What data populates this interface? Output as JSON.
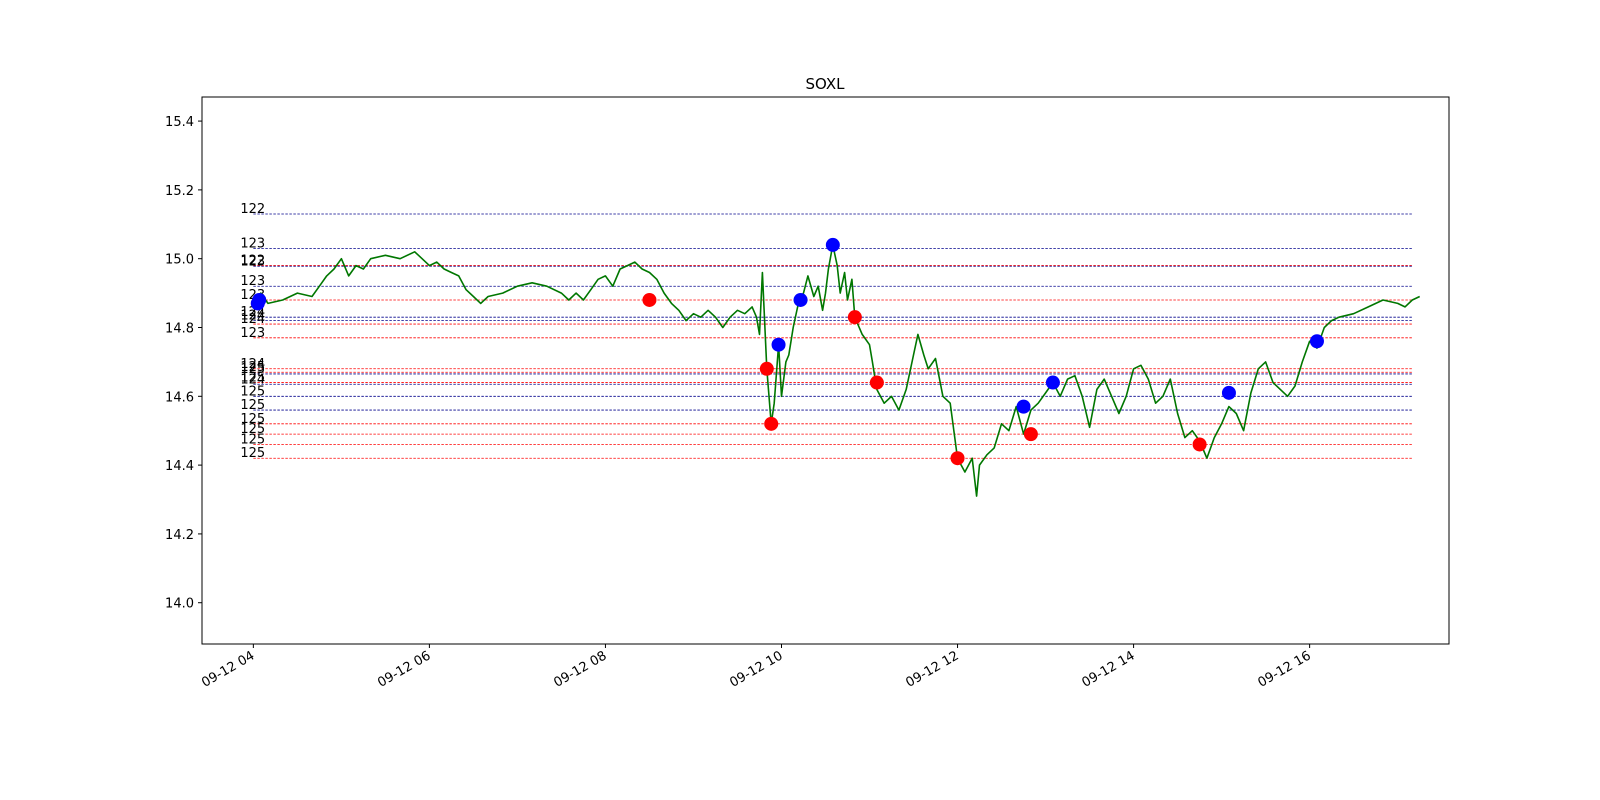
{
  "chart_data": {
    "type": "line",
    "title": "SOXL",
    "xlabel": "",
    "ylabel": "",
    "x_ticks": [
      "09-12 04",
      "09-12 06",
      "09-12 08",
      "09-12 10",
      "09-12 12",
      "09-12 14",
      "09-12 16"
    ],
    "y_ticks": [
      "14.0",
      "14.2",
      "14.4",
      "14.6",
      "14.8",
      "15.0",
      "15.2",
      "15.4"
    ],
    "xlim": [
      "09-12 03:25",
      "09-12 17:35"
    ],
    "ylim": [
      13.88,
      15.47
    ],
    "grid": false,
    "legend": "none",
    "colors": {
      "price": "#007700",
      "buy": "#0000ff",
      "sell": "#ff0000",
      "level_blue": "#00008b",
      "level_red": "#ff0000"
    },
    "price_series": [
      [
        "09-12 04:00",
        14.86
      ],
      [
        "09-12 04:05",
        14.9
      ],
      [
        "09-12 04:10",
        14.87
      ],
      [
        "09-12 04:20",
        14.88
      ],
      [
        "09-12 04:30",
        14.9
      ],
      [
        "09-12 04:40",
        14.89
      ],
      [
        "09-12 04:45",
        14.92
      ],
      [
        "09-12 04:50",
        14.95
      ],
      [
        "09-12 04:55",
        14.97
      ],
      [
        "09-12 05:00",
        15.0
      ],
      [
        "09-12 05:05",
        14.95
      ],
      [
        "09-12 05:10",
        14.98
      ],
      [
        "09-12 05:15",
        14.97
      ],
      [
        "09-12 05:20",
        15.0
      ],
      [
        "09-12 05:30",
        15.01
      ],
      [
        "09-12 05:40",
        15.0
      ],
      [
        "09-12 05:50",
        15.02
      ],
      [
        "09-12 05:55",
        15.0
      ],
      [
        "09-12 06:00",
        14.98
      ],
      [
        "09-12 06:05",
        14.99
      ],
      [
        "09-12 06:10",
        14.97
      ],
      [
        "09-12 06:15",
        14.96
      ],
      [
        "09-12 06:20",
        14.95
      ],
      [
        "09-12 06:25",
        14.91
      ],
      [
        "09-12 06:30",
        14.89
      ],
      [
        "09-12 06:35",
        14.87
      ],
      [
        "09-12 06:40",
        14.89
      ],
      [
        "09-12 06:50",
        14.9
      ],
      [
        "09-12 07:00",
        14.92
      ],
      [
        "09-12 07:10",
        14.93
      ],
      [
        "09-12 07:20",
        14.92
      ],
      [
        "09-12 07:30",
        14.9
      ],
      [
        "09-12 07:35",
        14.88
      ],
      [
        "09-12 07:40",
        14.9
      ],
      [
        "09-12 07:45",
        14.88
      ],
      [
        "09-12 07:50",
        14.91
      ],
      [
        "09-12 07:55",
        14.94
      ],
      [
        "09-12 08:00",
        14.95
      ],
      [
        "09-12 08:05",
        14.92
      ],
      [
        "09-12 08:10",
        14.97
      ],
      [
        "09-12 08:15",
        14.98
      ],
      [
        "09-12 08:20",
        14.99
      ],
      [
        "09-12 08:25",
        14.97
      ],
      [
        "09-12 08:30",
        14.96
      ],
      [
        "09-12 08:35",
        14.94
      ],
      [
        "09-12 08:40",
        14.9
      ],
      [
        "09-12 08:45",
        14.87
      ],
      [
        "09-12 08:50",
        14.85
      ],
      [
        "09-12 08:55",
        14.82
      ],
      [
        "09-12 09:00",
        14.84
      ],
      [
        "09-12 09:05",
        14.83
      ],
      [
        "09-12 09:10",
        14.85
      ],
      [
        "09-12 09:15",
        14.83
      ],
      [
        "09-12 09:20",
        14.8
      ],
      [
        "09-12 09:25",
        14.83
      ],
      [
        "09-12 09:30",
        14.85
      ],
      [
        "09-12 09:35",
        14.84
      ],
      [
        "09-12 09:40",
        14.86
      ],
      [
        "09-12 09:43",
        14.83
      ],
      [
        "09-12 09:45",
        14.78
      ],
      [
        "09-12 09:47",
        14.96
      ],
      [
        "09-12 09:50",
        14.68
      ],
      [
        "09-12 09:53",
        14.52
      ],
      [
        "09-12 09:55",
        14.58
      ],
      [
        "09-12 09:58",
        14.75
      ],
      [
        "09-12 10:00",
        14.6
      ],
      [
        "09-12 10:03",
        14.7
      ],
      [
        "09-12 10:05",
        14.72
      ],
      [
        "09-12 10:08",
        14.8
      ],
      [
        "09-12 10:12",
        14.88
      ],
      [
        "09-12 10:15",
        14.9
      ],
      [
        "09-12 10:18",
        14.95
      ],
      [
        "09-12 10:22",
        14.89
      ],
      [
        "09-12 10:25",
        14.92
      ],
      [
        "09-12 10:28",
        14.85
      ],
      [
        "09-12 10:30",
        14.9
      ],
      [
        "09-12 10:32",
        14.97
      ],
      [
        "09-12 10:35",
        15.04
      ],
      [
        "09-12 10:38",
        14.98
      ],
      [
        "09-12 10:40",
        14.9
      ],
      [
        "09-12 10:43",
        14.96
      ],
      [
        "09-12 10:45",
        14.88
      ],
      [
        "09-12 10:48",
        14.94
      ],
      [
        "09-12 10:50",
        14.83
      ],
      [
        "09-12 10:55",
        14.78
      ],
      [
        "09-12 11:00",
        14.75
      ],
      [
        "09-12 11:02",
        14.7
      ],
      [
        "09-12 11:05",
        14.62
      ],
      [
        "09-12 11:10",
        14.58
      ],
      [
        "09-12 11:15",
        14.6
      ],
      [
        "09-12 11:20",
        14.56
      ],
      [
        "09-12 11:25",
        14.62
      ],
      [
        "09-12 11:30",
        14.72
      ],
      [
        "09-12 11:33",
        14.78
      ],
      [
        "09-12 11:37",
        14.72
      ],
      [
        "09-12 11:40",
        14.68
      ],
      [
        "09-12 11:45",
        14.71
      ],
      [
        "09-12 11:50",
        14.6
      ],
      [
        "09-12 11:55",
        14.58
      ],
      [
        "09-12 12:00",
        14.42
      ],
      [
        "09-12 12:05",
        14.38
      ],
      [
        "09-12 12:10",
        14.42
      ],
      [
        "09-12 12:13",
        14.31
      ],
      [
        "09-12 12:15",
        14.4
      ],
      [
        "09-12 12:20",
        14.43
      ],
      [
        "09-12 12:25",
        14.45
      ],
      [
        "09-12 12:30",
        14.52
      ],
      [
        "09-12 12:35",
        14.5
      ],
      [
        "09-12 12:40",
        14.57
      ],
      [
        "09-12 12:45",
        14.49
      ],
      [
        "09-12 12:50",
        14.56
      ],
      [
        "09-12 12:55",
        14.58
      ],
      [
        "09-12 13:00",
        14.61
      ],
      [
        "09-12 13:05",
        14.64
      ],
      [
        "09-12 13:10",
        14.6
      ],
      [
        "09-12 13:15",
        14.65
      ],
      [
        "09-12 13:20",
        14.66
      ],
      [
        "09-12 13:25",
        14.6
      ],
      [
        "09-12 13:30",
        14.51
      ],
      [
        "09-12 13:35",
        14.62
      ],
      [
        "09-12 13:40",
        14.65
      ],
      [
        "09-12 13:45",
        14.6
      ],
      [
        "09-12 13:50",
        14.55
      ],
      [
        "09-12 13:55",
        14.6
      ],
      [
        "09-12 14:00",
        14.68
      ],
      [
        "09-12 14:05",
        14.69
      ],
      [
        "09-12 14:10",
        14.65
      ],
      [
        "09-12 14:15",
        14.58
      ],
      [
        "09-12 14:20",
        14.6
      ],
      [
        "09-12 14:25",
        14.65
      ],
      [
        "09-12 14:30",
        14.55
      ],
      [
        "09-12 14:35",
        14.48
      ],
      [
        "09-12 14:40",
        14.5
      ],
      [
        "09-12 14:45",
        14.47
      ],
      [
        "09-12 14:50",
        14.42
      ],
      [
        "09-12 14:55",
        14.48
      ],
      [
        "09-12 15:00",
        14.52
      ],
      [
        "09-12 15:05",
        14.57
      ],
      [
        "09-12 15:10",
        14.55
      ],
      [
        "09-12 15:15",
        14.5
      ],
      [
        "09-12 15:20",
        14.61
      ],
      [
        "09-12 15:25",
        14.68
      ],
      [
        "09-12 15:30",
        14.7
      ],
      [
        "09-12 15:35",
        14.64
      ],
      [
        "09-12 15:40",
        14.62
      ],
      [
        "09-12 15:45",
        14.6
      ],
      [
        "09-12 15:50",
        14.63
      ],
      [
        "09-12 15:55",
        14.7
      ],
      [
        "09-12 16:00",
        14.76
      ],
      [
        "09-12 16:05",
        14.74
      ],
      [
        "09-12 16:10",
        14.8
      ],
      [
        "09-12 16:15",
        14.82
      ],
      [
        "09-12 16:20",
        14.83
      ],
      [
        "09-12 16:30",
        14.84
      ],
      [
        "09-12 16:40",
        14.86
      ],
      [
        "09-12 16:50",
        14.88
      ],
      [
        "09-12 17:00",
        14.87
      ],
      [
        "09-12 17:05",
        14.86
      ],
      [
        "09-12 17:10",
        14.88
      ],
      [
        "09-12 17:15",
        14.89
      ]
    ],
    "buy_points": [
      [
        "09-12 04:03",
        14.87
      ],
      [
        "09-12 04:04",
        14.88
      ],
      [
        "09-12 09:58",
        14.75
      ],
      [
        "09-12 10:13",
        14.88
      ],
      [
        "09-12 10:35",
        15.04
      ],
      [
        "09-12 12:45",
        14.57
      ],
      [
        "09-12 13:05",
        14.64
      ],
      [
        "09-12 15:05",
        14.61
      ],
      [
        "09-12 16:05",
        14.76
      ]
    ],
    "sell_points": [
      [
        "09-12 08:30",
        14.88
      ],
      [
        "09-12 09:50",
        14.68
      ],
      [
        "09-12 09:53",
        14.52
      ],
      [
        "09-12 10:50",
        14.83
      ],
      [
        "09-12 11:05",
        14.64
      ],
      [
        "09-12 12:00",
        14.42
      ],
      [
        "09-12 12:50",
        14.49
      ],
      [
        "09-12 14:45",
        14.46
      ]
    ],
    "levels": [
      {
        "label": "122",
        "value": 15.13,
        "color": "blue"
      },
      {
        "label": "123",
        "value": 15.03,
        "color": "blue"
      },
      {
        "label": "122",
        "value": 14.98,
        "color": "red"
      },
      {
        "label": "123",
        "value": 14.978,
        "color": "blue"
      },
      {
        "label": "123",
        "value": 14.92,
        "color": "blue"
      },
      {
        "label": "123",
        "value": 14.88,
        "color": "red"
      },
      {
        "label": "124",
        "value": 14.83,
        "color": "blue"
      },
      {
        "label": "124",
        "value": 14.82,
        "color": "blue"
      },
      {
        "label": "124",
        "value": 14.81,
        "color": "red"
      },
      {
        "label": "123",
        "value": 14.77,
        "color": "red"
      },
      {
        "label": "124",
        "value": 14.68,
        "color": "red"
      },
      {
        "label": "125",
        "value": 14.67,
        "color": "red"
      },
      {
        "label": "125",
        "value": 14.665,
        "color": "blue"
      },
      {
        "label": "125",
        "value": 14.64,
        "color": "red"
      },
      {
        "label": "124",
        "value": 14.635,
        "color": "blue"
      },
      {
        "label": "125",
        "value": 14.6,
        "color": "blue"
      },
      {
        "label": "125",
        "value": 14.56,
        "color": "blue"
      },
      {
        "label": "125",
        "value": 14.52,
        "color": "red"
      },
      {
        "label": "125",
        "value": 14.49,
        "color": "red"
      },
      {
        "label": "125",
        "value": 14.46,
        "color": "red"
      },
      {
        "label": "125",
        "value": 14.42,
        "color": "red"
      }
    ],
    "level_span": [
      "09-12 04:00",
      "09-12 17:10"
    ]
  }
}
